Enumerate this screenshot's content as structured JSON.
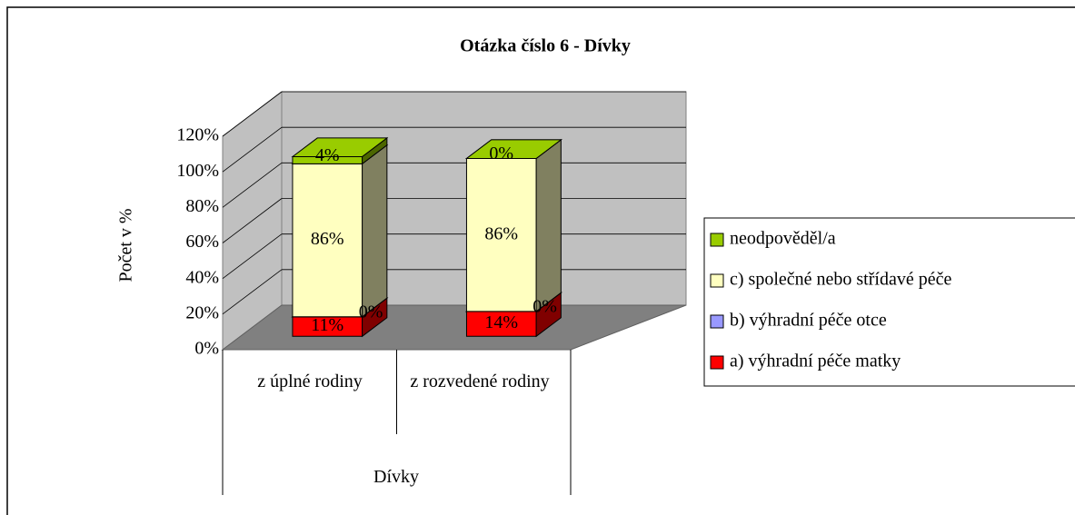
{
  "chart_data": {
    "type": "bar3d_stacked",
    "title": "Otázka číslo 6 - Dívky",
    "ylabel": "Počet v %",
    "group_label": "Dívky",
    "categories": [
      "z úplné rodiny",
      "z rozvedené rodiny"
    ],
    "ylim": [
      0,
      120
    ],
    "yticks": [
      {
        "value": 0,
        "label": "0%"
      },
      {
        "value": 20,
        "label": "20%"
      },
      {
        "value": 40,
        "label": "40%"
      },
      {
        "value": 60,
        "label": "60%"
      },
      {
        "value": 80,
        "label": "80%"
      },
      {
        "value": 100,
        "label": "100%"
      },
      {
        "value": 120,
        "label": "120%"
      }
    ],
    "grid": true,
    "legend": "right",
    "series": [
      {
        "name": "a) výhradní péče matky",
        "color": "#ff0000",
        "side": "#800000",
        "values": [
          11,
          14
        ],
        "value_labels": [
          "11%",
          "14%"
        ]
      },
      {
        "name": "b) výhradní péče otce",
        "color": "#9999ff",
        "side": "#4c4c80",
        "values": [
          0,
          0
        ],
        "value_labels": [
          "0%",
          "0%"
        ]
      },
      {
        "name": "c) společné nebo střídavé péče",
        "color": "#ffffc0",
        "side": "#808060",
        "values": [
          86,
          86
        ],
        "value_labels": [
          "86%",
          "86%"
        ]
      },
      {
        "name": "neodpověděl/a",
        "color": "#99cc00",
        "side": "#4c6600",
        "values": [
          4,
          0
        ],
        "value_labels": [
          "4%",
          "0%"
        ]
      }
    ]
  }
}
